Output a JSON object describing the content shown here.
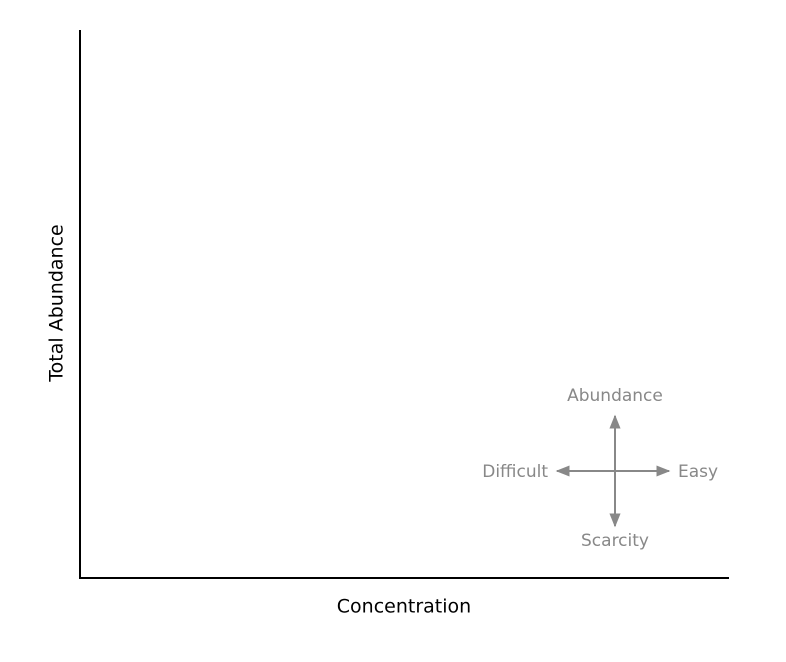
{
  "chart_data": {
    "type": "scatter",
    "x_label": "Concentration",
    "y_label": "Total Abundance",
    "annotations": {
      "up": "Abundance",
      "down": "Scarcity",
      "left": "Difficult",
      "right": "Easy"
    }
  }
}
